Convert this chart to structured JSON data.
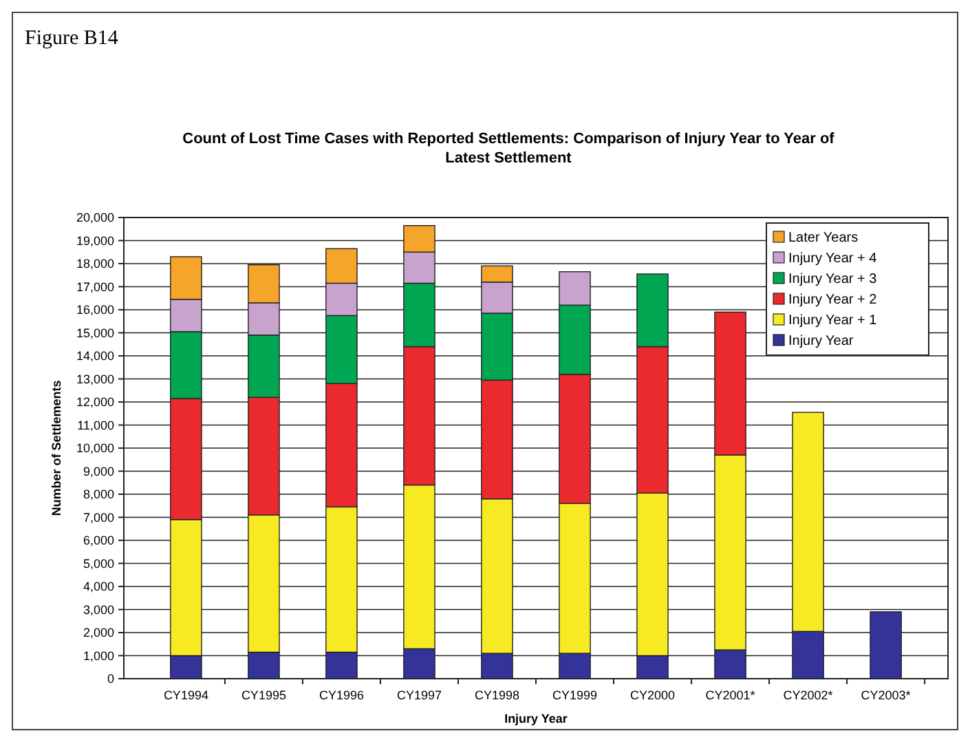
{
  "chart_data": {
    "type": "bar",
    "stacked": true,
    "title": "Count of Lost Time Cases with Reported Settlements: Comparison of Injury Year to Year of Latest Settlement",
    "annotations": [
      "Figure B14"
    ],
    "xlabel": "Injury Year",
    "ylabel": "Number of Settlements",
    "categories": [
      "CY1994",
      "CY1995",
      "CY1996",
      "CY1997",
      "CY1998",
      "CY1999",
      "CY2000",
      "CY2001*",
      "CY2002*",
      "CY2003*"
    ],
    "series": [
      {
        "name": "Injury Year",
        "color": "#333399",
        "values": [
          1000,
          1150,
          1150,
          1300,
          1100,
          1100,
          1000,
          1250,
          2050,
          2900
        ]
      },
      {
        "name": "Injury Year + 1",
        "color": "#f7ea23",
        "values": [
          5900,
          5950,
          6300,
          7100,
          6700,
          6500,
          7050,
          8450,
          9500,
          null
        ]
      },
      {
        "name": "Injury Year + 2",
        "color": "#ea2a2e",
        "values": [
          5250,
          5100,
          5350,
          6000,
          5150,
          5600,
          6350,
          6200,
          null,
          null
        ]
      },
      {
        "name": "Injury Year + 3",
        "color": "#00a651",
        "values": [
          2900,
          2700,
          2950,
          2750,
          2900,
          3000,
          3150,
          null,
          null,
          null
        ]
      },
      {
        "name": "Injury Year + 4",
        "color": "#c8a3cd",
        "values": [
          1400,
          1400,
          1400,
          1350,
          1350,
          1450,
          null,
          null,
          null,
          null
        ]
      },
      {
        "name": "Later Years",
        "color": "#f5a52a",
        "values": [
          1850,
          1650,
          1500,
          1150,
          700,
          null,
          null,
          null,
          null,
          null
        ]
      }
    ],
    "ylim": [
      0,
      20000
    ],
    "yticks": [
      0,
      {
        "value": 1000,
        "label": "1,000"
      },
      {
        "value": 2000,
        "label": "2,000"
      },
      {
        "value": 3000,
        "label": "3,000"
      },
      {
        "value": 4000,
        "label": "4,000"
      },
      {
        "value": 5000,
        "label": "5,000"
      },
      {
        "value": 6000,
        "label": "6,000"
      },
      {
        "value": 7000,
        "label": "7,000"
      },
      {
        "value": 8000,
        "label": "8,000"
      },
      {
        "value": 9000,
        "label": "9,000"
      },
      {
        "value": 10000,
        "label": "10,000"
      },
      {
        "value": 11000,
        "label": "11,000"
      },
      {
        "value": 12000,
        "label": "12,000"
      },
      {
        "value": 13000,
        "label": "13,000"
      },
      {
        "value": 14000,
        "label": "14,000"
      },
      {
        "value": 15000,
        "label": "15,000"
      },
      {
        "value": 16000,
        "label": "16,000"
      },
      {
        "value": 17000,
        "label": "17,000"
      },
      {
        "value": 18000,
        "label": "18,000"
      },
      {
        "value": 19000,
        "label": "19,000"
      },
      {
        "value": 20000,
        "label": "20,000"
      }
    ],
    "grid": "y",
    "legend": "top right"
  }
}
